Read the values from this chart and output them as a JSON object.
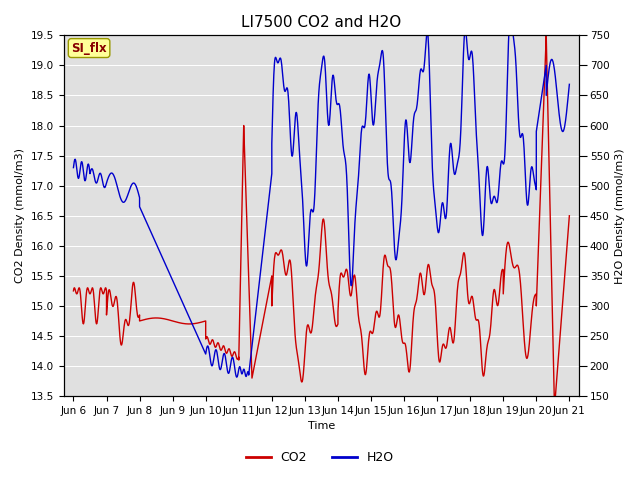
{
  "title": "LI7500 CO2 and H2O",
  "xlabel": "Time",
  "ylabel_left": "CO2 Density (mmol/m3)",
  "ylabel_right": "H2O Density (mmol/m3)",
  "co2_color": "#CC0000",
  "h2o_color": "#0000CC",
  "ylim_left": [
    13.5,
    19.5
  ],
  "ylim_right": [
    150,
    750
  ],
  "yticks_left": [
    13.5,
    14.0,
    14.5,
    15.0,
    15.5,
    16.0,
    16.5,
    17.0,
    17.5,
    18.0,
    18.5,
    19.0,
    19.5
  ],
  "yticks_right": [
    150,
    200,
    250,
    300,
    350,
    400,
    450,
    500,
    550,
    600,
    650,
    700,
    750
  ],
  "annotation_text": "SI_flx",
  "annotation_color": "#880000",
  "annotation_bg": "#FFFF99",
  "annotation_edge": "#999900",
  "bg_color": "#E0E0E0",
  "line_width": 1.0,
  "title_fontsize": 11,
  "label_fontsize": 8,
  "tick_fontsize": 7.5,
  "legend_fontsize": 9,
  "xlim": [
    -0.3,
    15.3
  ],
  "xtick_positions": [
    0,
    1,
    2,
    3,
    4,
    5,
    6,
    7,
    8,
    9,
    10,
    11,
    12,
    13,
    14,
    15
  ],
  "xtick_labels": [
    "Jun 6",
    "Jun 7",
    "Jun 8",
    "Jun 9",
    "Jun 10",
    "Jun 11",
    "Jun 12",
    "Jun 13",
    "Jun 14",
    "Jun 15",
    "Jun 16",
    "Jun 17",
    "Jun 18",
    "Jun 19",
    "Jun 20",
    "Jun 21"
  ]
}
